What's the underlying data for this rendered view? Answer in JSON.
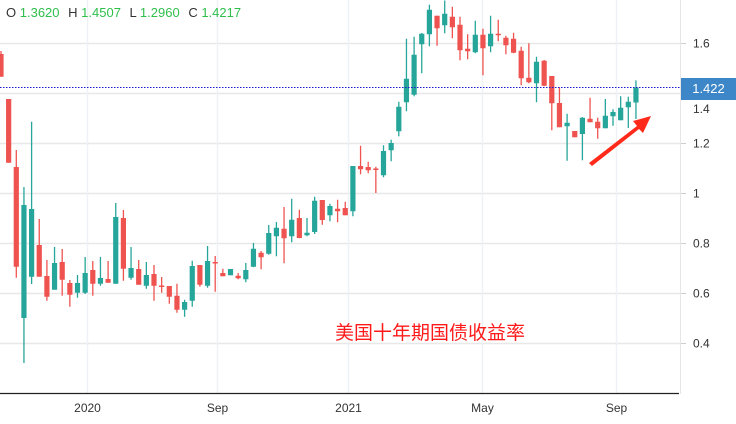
{
  "legend": {
    "o_label": "O",
    "o_value": "1.3620",
    "h_label": "H",
    "h_value": "1.4507",
    "l_label": "L",
    "l_value": "1.2960",
    "c_label": "C",
    "c_value": "1.4217"
  },
  "annotation": "美国十年期国债收益率",
  "last_price_label": "1.422",
  "colors": {
    "up": "#26a69a",
    "down": "#ef5350",
    "last_price_box": "#3d87c9",
    "last_price_line": "#1a1acc",
    "annotation": "#ff1a1a",
    "arrow": "#ff2a1a"
  },
  "chart_data": {
    "type": "candlestick",
    "title": "",
    "ylim": [
      0.19,
      1.77
    ],
    "yticks": [
      0.4,
      0.6,
      0.8,
      1,
      1.2,
      1.4,
      1.6
    ],
    "ytick_labels": [
      "0.4",
      "0.6",
      "0.8",
      "1",
      "1.2",
      "1.4",
      "1.6"
    ],
    "xticks": [
      {
        "label": "2020",
        "candle_index": 11.2
      },
      {
        "label": "Sep",
        "candle_index": 28.2
      },
      {
        "label": "2021",
        "candle_index": 45.4
      },
      {
        "label": "May",
        "candle_index": 62.9
      },
      {
        "label": "Sep",
        "candle_index": 80.4
      }
    ],
    "grid": true,
    "last_price": 1.422,
    "candles": [
      [
        1.556,
        1.568,
        1.465,
        1.465
      ],
      [
        1.376,
        1.376,
        1.121,
        1.121
      ],
      [
        1.104,
        1.172,
        0.661,
        0.705
      ],
      [
        0.5,
        1.024,
        0.32,
        0.952
      ],
      [
        0.665,
        1.285,
        0.636,
        0.936
      ],
      [
        0.792,
        0.896,
        0.665,
        0.665
      ],
      [
        0.668,
        0.732,
        0.569,
        0.585
      ],
      [
        0.613,
        0.784,
        0.613,
        0.72
      ],
      [
        0.724,
        0.776,
        0.589,
        0.653
      ],
      [
        0.64,
        0.652,
        0.545,
        0.593
      ],
      [
        0.601,
        0.672,
        0.581,
        0.64
      ],
      [
        0.601,
        0.744,
        0.596,
        0.68
      ],
      [
        0.692,
        0.728,
        0.589,
        0.637
      ],
      [
        0.637,
        0.744,
        0.629,
        0.66
      ],
      [
        0.656,
        0.728,
        0.641,
        0.641
      ],
      [
        0.637,
        0.96,
        0.637,
        0.904
      ],
      [
        0.9,
        0.932,
        0.649,
        0.697
      ],
      [
        0.661,
        0.784,
        0.653,
        0.7
      ],
      [
        0.696,
        0.732,
        0.633,
        0.633
      ],
      [
        0.629,
        0.724,
        0.617,
        0.672
      ],
      [
        0.676,
        0.712,
        0.569,
        0.629
      ],
      [
        0.63,
        0.664,
        0.601,
        0.628
      ],
      [
        0.628,
        0.628,
        0.557,
        0.585
      ],
      [
        0.589,
        0.637,
        0.521,
        0.533
      ],
      [
        0.533,
        0.573,
        0.505,
        0.564
      ],
      [
        0.569,
        0.729,
        0.545,
        0.708
      ],
      [
        0.712,
        0.712,
        0.625,
        0.633
      ],
      [
        0.629,
        0.788,
        0.621,
        0.728
      ],
      [
        0.724,
        0.748,
        0.605,
        0.721
      ],
      [
        0.68,
        0.697,
        0.667,
        0.667
      ],
      [
        0.671,
        0.696,
        0.671,
        0.696
      ],
      [
        0.669,
        0.68,
        0.655,
        0.659
      ],
      [
        0.655,
        0.72,
        0.643,
        0.692
      ],
      [
        0.705,
        0.8,
        0.703,
        0.777
      ],
      [
        0.761,
        0.768,
        0.695,
        0.743
      ],
      [
        0.757,
        0.872,
        0.753,
        0.84
      ],
      [
        0.827,
        0.884,
        0.747,
        0.861
      ],
      [
        0.857,
        0.944,
        0.719,
        0.819
      ],
      [
        0.827,
        0.977,
        0.803,
        0.893
      ],
      [
        0.9,
        0.933,
        0.819,
        0.82
      ],
      [
        0.831,
        0.9,
        0.827,
        0.841
      ],
      [
        0.844,
        0.985,
        0.836,
        0.969
      ],
      [
        0.972,
        0.972,
        0.873,
        0.892
      ],
      [
        0.911,
        0.957,
        0.887,
        0.948
      ],
      [
        0.937,
        0.973,
        0.883,
        0.927
      ],
      [
        0.94,
        0.965,
        0.911,
        0.911
      ],
      [
        0.927,
        1.108,
        0.907,
        1.108
      ],
      [
        1.108,
        1.189,
        1.075,
        1.095
      ],
      [
        1.104,
        1.125,
        1.079,
        1.091
      ],
      [
        1.098,
        1.105,
        1.0,
        1.096
      ],
      [
        1.071,
        1.191,
        1.063,
        1.168
      ],
      [
        1.171,
        1.213,
        1.127,
        1.2
      ],
      [
        1.247,
        1.365,
        1.227,
        1.345
      ],
      [
        1.363,
        1.617,
        1.327,
        1.457
      ],
      [
        1.393,
        1.625,
        1.387,
        1.553
      ],
      [
        1.595,
        1.64,
        1.479,
        1.637
      ],
      [
        1.635,
        1.753,
        1.587,
        1.733
      ],
      [
        1.709,
        1.709,
        1.589,
        1.659
      ],
      [
        1.671,
        1.77,
        1.639,
        1.717
      ],
      [
        1.705,
        1.745,
        1.619,
        1.663
      ],
      [
        1.673,
        1.705,
        1.531,
        1.571
      ],
      [
        1.577,
        1.635,
        1.535,
        1.567
      ],
      [
        1.563,
        1.689,
        1.559,
        1.633
      ],
      [
        1.633,
        1.657,
        1.471,
        1.579
      ],
      [
        1.587,
        1.709,
        1.563,
        1.637
      ],
      [
        1.637,
        1.693,
        1.607,
        1.631
      ],
      [
        1.621,
        1.629,
        1.555,
        1.591
      ],
      [
        1.617,
        1.641,
        1.559,
        1.561
      ],
      [
        1.569,
        1.585,
        1.431,
        1.459
      ],
      [
        1.461,
        1.599,
        1.439,
        1.443
      ],
      [
        1.439,
        1.545,
        1.363,
        1.525
      ],
      [
        1.529,
        1.532,
        1.427,
        1.429
      ],
      [
        1.468,
        1.468,
        1.251,
        1.359
      ],
      [
        1.36,
        1.423,
        1.263,
        1.263
      ],
      [
        1.267,
        1.317,
        1.129,
        1.281
      ],
      [
        1.248,
        1.248,
        1.223,
        1.223
      ],
      [
        1.236,
        1.304,
        1.131,
        1.301
      ],
      [
        1.297,
        1.381,
        1.283,
        1.283
      ],
      [
        1.285,
        1.301,
        1.217,
        1.259
      ],
      [
        1.259,
        1.376,
        1.259,
        1.309
      ],
      [
        1.307,
        1.335,
        1.269,
        1.324
      ],
      [
        1.291,
        1.387,
        1.291,
        1.341
      ],
      [
        1.343,
        1.385,
        1.26,
        1.365
      ],
      [
        1.362,
        1.4507,
        1.296,
        1.4217
      ]
    ]
  }
}
